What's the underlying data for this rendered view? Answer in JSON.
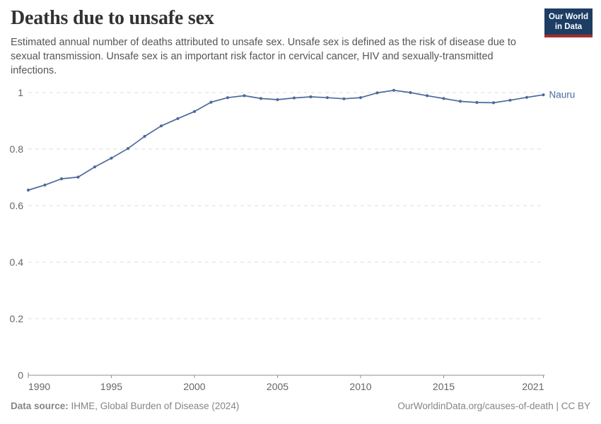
{
  "header": {
    "title": "Deaths due to unsafe sex",
    "subtitle": "Estimated annual number of deaths attributed to unsafe sex. Unsafe sex is defined as the risk of disease due to sexual transmission. Unsafe sex is an important risk factor in cervical cancer, HIV and sexually-transmitted infections.",
    "logo": {
      "line1": "Our World",
      "line2": "in Data"
    }
  },
  "chart_data": {
    "type": "line",
    "title": "Deaths due to unsafe sex",
    "xlabel": "",
    "ylabel": "",
    "x": [
      1990,
      1991,
      1992,
      1993,
      1994,
      1995,
      1996,
      1997,
      1998,
      1999,
      2000,
      2001,
      2002,
      2003,
      2004,
      2005,
      2006,
      2007,
      2008,
      2009,
      2010,
      2011,
      2012,
      2013,
      2014,
      2015,
      2016,
      2017,
      2018,
      2019,
      2020,
      2021
    ],
    "series": [
      {
        "name": "Nauru",
        "color": "#4c6a9c",
        "values": [
          0.655,
          0.673,
          0.695,
          0.701,
          0.737,
          0.768,
          0.802,
          0.845,
          0.882,
          0.908,
          0.933,
          0.966,
          0.982,
          0.989,
          0.979,
          0.975,
          0.981,
          0.985,
          0.982,
          0.978,
          0.982,
          0.999,
          1.008,
          1.0,
          0.989,
          0.979,
          0.969,
          0.965,
          0.964,
          0.973,
          0.983,
          0.992
        ]
      }
    ],
    "xlim": [
      1990,
      2021
    ],
    "ylim": [
      0,
      1
    ],
    "xticks": [
      1990,
      1995,
      2000,
      2005,
      2010,
      2015,
      2021
    ],
    "yticks": [
      0,
      0.2,
      0.4,
      0.6,
      0.8,
      1
    ],
    "ytick_labels": [
      "0",
      "0.2",
      "0.4",
      "0.6",
      "0.8",
      "1"
    ],
    "grid": "horizontal-dashed",
    "legend_position": "end-of-line-label",
    "end_label": "Nauru",
    "markers": true
  },
  "footer": {
    "source_label": "Data source:",
    "source_value": "IHME, Global Burden of Disease (2024)",
    "credit": "OurWorldinData.org/causes-of-death | CC BY"
  },
  "colors": {
    "line": "#4c6a9c",
    "grid": "#dddddd",
    "axis": "#8f8f8f",
    "tick_label": "#666666",
    "end_label": "#4c6a9c",
    "logo_bg": "#1d3d63",
    "logo_accent": "#a82b2b"
  }
}
